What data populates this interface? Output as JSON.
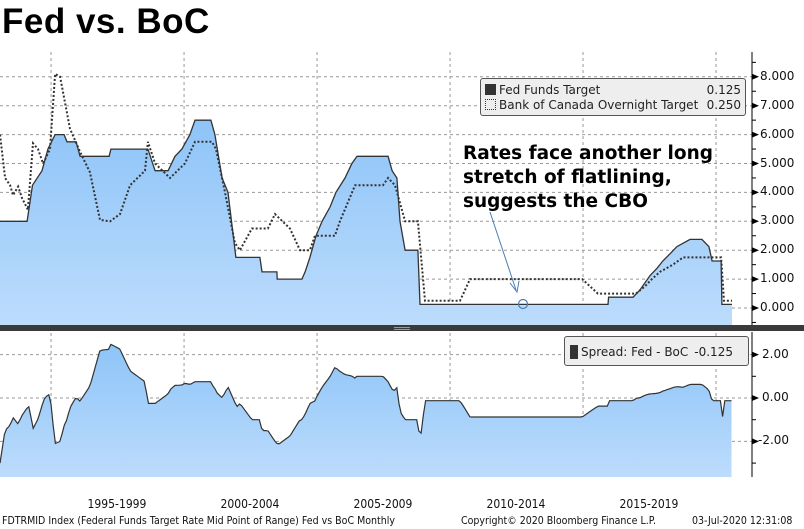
{
  "title": "Fed vs. BoC",
  "annotation": [
    "Rates face another long",
    "stretch of flatlining,",
    "suggests the CBO"
  ],
  "legend_top": [
    {
      "label": "Fed Funds Target",
      "value": "0.125",
      "style": "solid"
    },
    {
      "label": "Bank of Canada Overnight Target",
      "value": "0.250",
      "style": "dotted"
    }
  ],
  "legend_bottom": {
    "label": "Spread: Fed - BoC",
    "value": "-0.125"
  },
  "x_labels": [
    "1995-1999",
    "2000-2004",
    "2005-2009",
    "2010-2014",
    "2015-2019"
  ],
  "footer": {
    "source": "FDTRMID Index (Federal Funds Target Rate Mid Point of Range) Fed vs BoC  Monthly",
    "copyright": "Copyright© 2020 Bloomberg Finance L.P.",
    "timestamp": "03-Jul-2020 12:31:08"
  },
  "colors": {
    "fill_top": "#8ec4f8",
    "fill_bottom": "#bcdcfc",
    "line": "#333333",
    "annotation_arrow": "#4a7fb5"
  },
  "chart_data": [
    {
      "type": "area",
      "xlim": [
        1993.08,
        2020.6
      ],
      "ylim": [
        -0.5,
        8.5
      ],
      "y_ticks": [
        "0.000",
        "1.000",
        "2.000",
        "3.000",
        "4.000",
        "5.000",
        "6.000",
        "7.000",
        "8.000"
      ],
      "x_gridlines": [
        1995,
        2000,
        2005,
        2010,
        2015,
        2020
      ],
      "grid": true,
      "legend_placement": "top-right",
      "series": [
        {
          "name": "Fed Funds Target",
          "style": "solid-area",
          "points": [
            [
              1993.08,
              3.0
            ],
            [
              1994.1,
              3.0
            ],
            [
              1994.3,
              4.25
            ],
            [
              1994.66,
              4.75
            ],
            [
              1994.88,
              5.5
            ],
            [
              1995.15,
              6.0
            ],
            [
              1995.49,
              6.0
            ],
            [
              1995.6,
              5.75
            ],
            [
              1995.94,
              5.75
            ],
            [
              1996.09,
              5.25
            ],
            [
              1997.18,
              5.25
            ],
            [
              1997.25,
              5.5
            ],
            [
              1998.64,
              5.5
            ],
            [
              1998.91,
              4.75
            ],
            [
              1999.4,
              4.75
            ],
            [
              1999.66,
              5.25
            ],
            [
              1999.92,
              5.5
            ],
            [
              2000.22,
              6.0
            ],
            [
              2000.41,
              6.5
            ],
            [
              2001.01,
              6.5
            ],
            [
              2001.16,
              6.0
            ],
            [
              2001.43,
              4.5
            ],
            [
              2001.65,
              4.0
            ],
            [
              2001.95,
              1.75
            ],
            [
              2002.85,
              1.75
            ],
            [
              2002.93,
              1.25
            ],
            [
              2003.49,
              1.25
            ],
            [
              2003.5,
              1.0
            ],
            [
              2004.43,
              1.0
            ],
            [
              2004.55,
              1.25
            ],
            [
              2004.73,
              1.75
            ],
            [
              2004.96,
              2.5
            ],
            [
              2005.19,
              3.0
            ],
            [
              2005.49,
              3.5
            ],
            [
              2005.71,
              4.0
            ],
            [
              2006.05,
              4.5
            ],
            [
              2006.31,
              5.0
            ],
            [
              2006.5,
              5.25
            ],
            [
              2007.67,
              5.25
            ],
            [
              2007.82,
              4.75
            ],
            [
              2008.0,
              4.5
            ],
            [
              2008.12,
              3.0
            ],
            [
              2008.31,
              2.0
            ],
            [
              2008.79,
              2.0
            ],
            [
              2008.87,
              0.125
            ],
            [
              2015.94,
              0.125
            ],
            [
              2015.96,
              0.375
            ],
            [
              2016.88,
              0.375
            ],
            [
              2017.14,
              0.625
            ],
            [
              2017.33,
              0.875
            ],
            [
              2017.52,
              1.125
            ],
            [
              2017.78,
              1.375
            ],
            [
              2018.0,
              1.625
            ],
            [
              2018.27,
              1.875
            ],
            [
              2018.53,
              2.125
            ],
            [
              2019.02,
              2.375
            ],
            [
              2019.47,
              2.375
            ],
            [
              2019.73,
              2.125
            ],
            [
              2019.85,
              1.625
            ],
            [
              2020.19,
              1.625
            ],
            [
              2020.22,
              0.125
            ],
            [
              2020.6,
              0.125
            ]
          ]
        },
        {
          "name": "Bank of Canada Overnight Target",
          "style": "dotted-line",
          "points": [
            [
              1993.08,
              6.0
            ],
            [
              1993.27,
              4.5
            ],
            [
              1993.46,
              4.25
            ],
            [
              1993.57,
              3.9
            ],
            [
              1993.76,
              4.2
            ],
            [
              1993.91,
              3.8
            ],
            [
              1994.13,
              3.4
            ],
            [
              1994.32,
              5.7
            ],
            [
              1994.51,
              5.5
            ],
            [
              1994.7,
              5.0
            ],
            [
              1994.96,
              5.5
            ],
            [
              1995.15,
              8.1
            ],
            [
              1995.34,
              8.0
            ],
            [
              1995.71,
              6.2
            ],
            [
              1996.09,
              5.4
            ],
            [
              1996.46,
              4.7
            ],
            [
              1996.84,
              3.05
            ],
            [
              1997.22,
              3.0
            ],
            [
              1997.59,
              3.25
            ],
            [
              1997.97,
              4.25
            ],
            [
              1998.53,
              4.75
            ],
            [
              1998.64,
              5.75
            ],
            [
              1998.91,
              5.0
            ],
            [
              1999.47,
              4.5
            ],
            [
              2000.03,
              5.0
            ],
            [
              2000.41,
              5.75
            ],
            [
              2001.05,
              5.75
            ],
            [
              2001.2,
              5.5
            ],
            [
              2001.54,
              4.0
            ],
            [
              2001.91,
              2.25
            ],
            [
              2002.1,
              2.0
            ],
            [
              2002.55,
              2.75
            ],
            [
              2003.15,
              2.75
            ],
            [
              2003.42,
              3.25
            ],
            [
              2003.98,
              2.75
            ],
            [
              2004.36,
              2.0
            ],
            [
              2004.73,
              2.0
            ],
            [
              2004.92,
              2.5
            ],
            [
              2005.67,
              2.5
            ],
            [
              2005.86,
              3.0
            ],
            [
              2006.43,
              4.25
            ],
            [
              2007.48,
              4.25
            ],
            [
              2007.67,
              4.5
            ],
            [
              2007.93,
              4.25
            ],
            [
              2008.31,
              3.0
            ],
            [
              2008.79,
              3.0
            ],
            [
              2009.06,
              0.25
            ],
            [
              2010.37,
              0.25
            ],
            [
              2010.5,
              0.5
            ],
            [
              2010.75,
              1.0
            ],
            [
              2014.97,
              1.0
            ],
            [
              2015.26,
              0.75
            ],
            [
              2015.56,
              0.5
            ],
            [
              2016.99,
              0.5
            ],
            [
              2017.33,
              0.75
            ],
            [
              2017.59,
              1.0
            ],
            [
              2017.89,
              1.25
            ],
            [
              2018.38,
              1.5
            ],
            [
              2018.76,
              1.75
            ],
            [
              2020.19,
              1.75
            ],
            [
              2020.3,
              0.25
            ],
            [
              2020.6,
              0.25
            ]
          ]
        }
      ]
    },
    {
      "type": "area",
      "xlim": [
        1993.08,
        2020.6
      ],
      "ylim": [
        -3.5,
        3.2
      ],
      "y_ticks": [
        "2.00",
        "0.00",
        "-2.00"
      ],
      "grid": true,
      "legend_placement": "top-right",
      "series": [
        {
          "name": "Spread: Fed - BoC",
          "derived_from": [
            "Fed Funds Target",
            "Bank of Canada Overnight Target"
          ]
        }
      ]
    }
  ]
}
